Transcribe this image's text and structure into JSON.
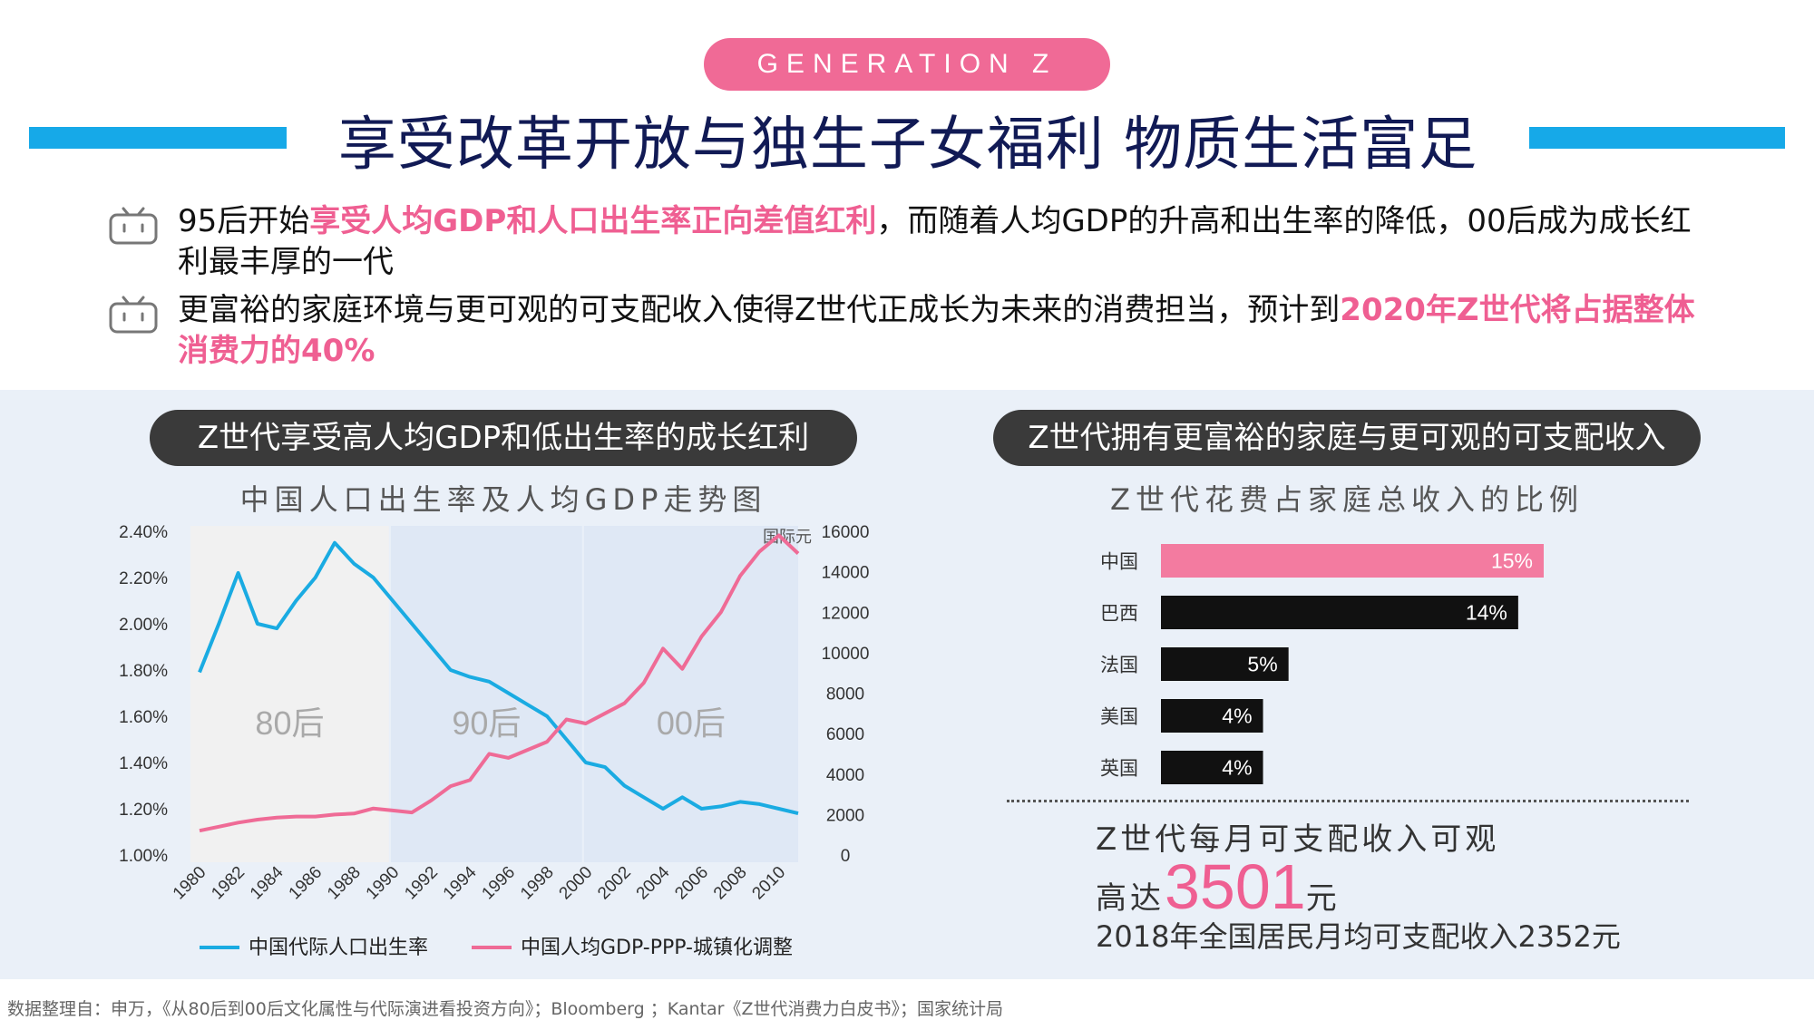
{
  "header": {
    "tag": "GENERATION Z",
    "title": "享受改革开放与独生子女福利 物质生活富足"
  },
  "bullets": [
    {
      "parts": [
        {
          "text": "95后开始",
          "hl": false
        },
        {
          "text": "享受人均GDP和人口出生率正向差值红利",
          "hl": true
        },
        {
          "text": "，而随着人均GDP的升高和出生率的降低，00后成为成长红利最丰厚的一代",
          "hl": false
        }
      ]
    },
    {
      "parts": [
        {
          "text": "更富裕的家庭环境与更可观的可支配收入使得Z世代正成长为未来的消费担当，预计到",
          "hl": false
        },
        {
          "text": "2020年Z世代将占据整体消费力的40%",
          "hl": true
        }
      ]
    }
  ],
  "left_panel": {
    "pill": "Z世代享受高人均GDP和低出生率的成长红利",
    "subtitle": "中国人口出生率及人均GDP走势图"
  },
  "right_panel": {
    "pill": "Z世代拥有更富裕的家庭与更可观的可支配收入",
    "subtitle": "Z世代花费占家庭总收入的比例",
    "income_line1": "Z世代每月可支配收入可观",
    "income_pre": "高达",
    "income_value": "3501",
    "income_unit": "元",
    "income_line3": "2018年全国居民月均可支配收入2352元"
  },
  "source": "数据整理自：申万，《从80后到00后文化属性与代际演进看投资方向》；Bloomberg ；Kantar《Z世代消费力白皮书》；国家统计局",
  "colors": {
    "pink": "#ef6b96",
    "blue": "#1aabe2",
    "dark": "#111111",
    "title_navy": "#111a55"
  },
  "chart_data": [
    {
      "type": "line",
      "title": "中国人口出生率及人均GDP走势图",
      "x": [
        1980,
        1981,
        1982,
        1983,
        1984,
        1985,
        1986,
        1987,
        1988,
        1989,
        1990,
        1991,
        1992,
        1993,
        1994,
        1995,
        1996,
        1997,
        1998,
        1999,
        2000,
        2001,
        2002,
        2003,
        2004,
        2005,
        2006,
        2007,
        2008,
        2009,
        2010,
        2011
      ],
      "x_tick_labels": [
        "1980",
        "1982",
        "1984",
        "1986",
        "1988",
        "1990",
        "1992",
        "1994",
        "1996",
        "1998",
        "2000",
        "2002",
        "2004",
        "2006",
        "2008",
        "2010"
      ],
      "y_left_ticks": [
        "2.40%",
        "2.20%",
        "2.00%",
        "1.80%",
        "1.60%",
        "1.40%",
        "1.20%",
        "1.00%"
      ],
      "y_left_lim": [
        1.0,
        2.4
      ],
      "y_right_ticks": [
        "16000",
        "14000",
        "12000",
        "10000",
        "8000",
        "6000",
        "4000",
        "2000",
        "0"
      ],
      "y_right_lim": [
        0,
        16000
      ],
      "y_right_unit": "国际元",
      "eras": [
        {
          "label": "80后",
          "from": 1980,
          "to": 1989
        },
        {
          "label": "90后",
          "from": 1990,
          "to": 1999
        },
        {
          "label": "00后",
          "from": 2000,
          "to": 2009
        }
      ],
      "series": [
        {
          "name": "中国代际人口出生率",
          "axis": "left",
          "values": [
            1.79,
            2.0,
            2.22,
            2.0,
            1.98,
            2.1,
            2.2,
            2.35,
            2.26,
            2.2,
            2.1,
            2.0,
            1.9,
            1.8,
            1.77,
            1.75,
            1.7,
            1.65,
            1.6,
            1.5,
            1.4,
            1.38,
            1.3,
            1.25,
            1.2,
            1.25,
            1.2,
            1.21,
            1.23,
            1.22,
            1.2,
            1.18
          ]
        },
        {
          "name": "中国人均GDP-PPP-城镇化调整",
          "axis": "right",
          "values": [
            1200,
            1400,
            1600,
            1750,
            1850,
            1900,
            1900,
            2000,
            2050,
            2300,
            2200,
            2100,
            2700,
            3400,
            3700,
            5000,
            4800,
            5200,
            5600,
            6700,
            6500,
            7000,
            7500,
            8500,
            10200,
            9200,
            10800,
            12000,
            13800,
            15000,
            15800,
            14900
          ]
        }
      ]
    },
    {
      "type": "bar",
      "orientation": "horizontal",
      "title": "Z世代花费占家庭总收入的比例",
      "categories": [
        "中国",
        "巴西",
        "法国",
        "美国",
        "英国"
      ],
      "values": [
        15,
        14,
        5,
        4,
        4
      ],
      "value_labels": [
        "15%",
        "14%",
        "5%",
        "4%",
        "4%"
      ],
      "bar_colors": [
        "#f37ba0",
        "#111111",
        "#111111",
        "#111111",
        "#111111"
      ]
    }
  ]
}
